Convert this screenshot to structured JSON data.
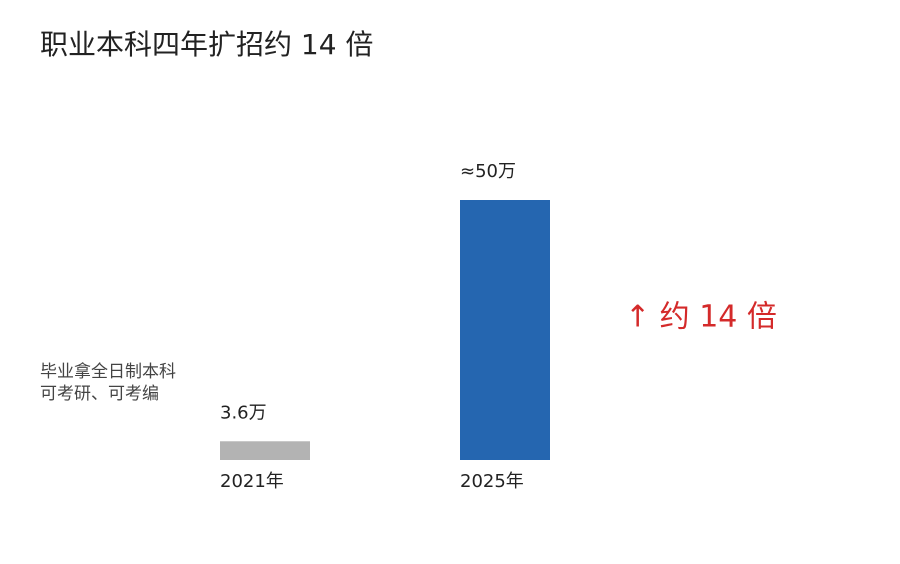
{
  "chart_data": {
    "type": "bar",
    "title": "职业本科四年扩招约 14 倍",
    "categories": [
      "2021年",
      "2025年"
    ],
    "values": [
      3.6,
      50
    ],
    "value_labels": [
      "3.6万",
      "≈50万"
    ],
    "colors": [
      "#b3b3b3",
      "#2566b0"
    ],
    "ylim": [
      0,
      50
    ],
    "annotations": [
      "毕业拿全日制本科",
      "可考研、可考编",
      "↑ 约 14 倍"
    ],
    "annotation_color": "#d42a2a"
  }
}
